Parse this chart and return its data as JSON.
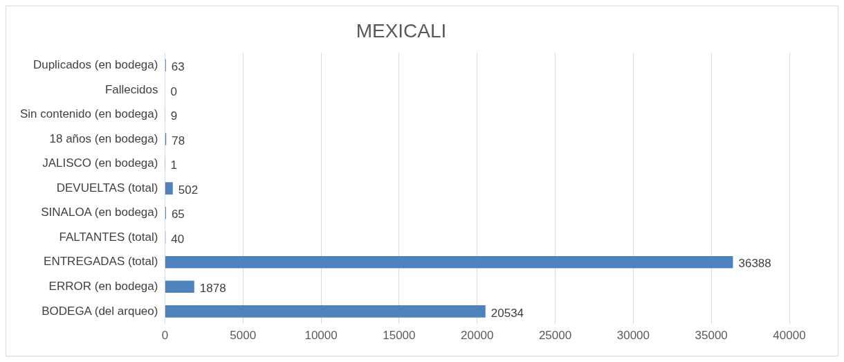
{
  "chart_data": {
    "type": "bar",
    "title": "MEXICALI",
    "orientation": "horizontal",
    "categories": [
      "Duplicados (en bodega)",
      "Fallecidos",
      "Sin contenido (en bodega)",
      "18 años (en bodega)",
      "JALISCO (en bodega)",
      "DEVUELTAS (total)",
      "SINALOA (en bodega)",
      "FALTANTES (total)",
      "ENTREGADAS (total)",
      "ERROR (en bodega)",
      "BODEGA (del arqueo)"
    ],
    "values": [
      63,
      0,
      9,
      78,
      1,
      502,
      65,
      40,
      36388,
      1878,
      20534
    ],
    "color": "#4f81bd",
    "xlim": [
      0,
      40000
    ],
    "xticks": [
      0,
      5000,
      10000,
      15000,
      20000,
      25000,
      30000,
      35000,
      40000
    ],
    "grid": "x",
    "data_labels": true
  }
}
